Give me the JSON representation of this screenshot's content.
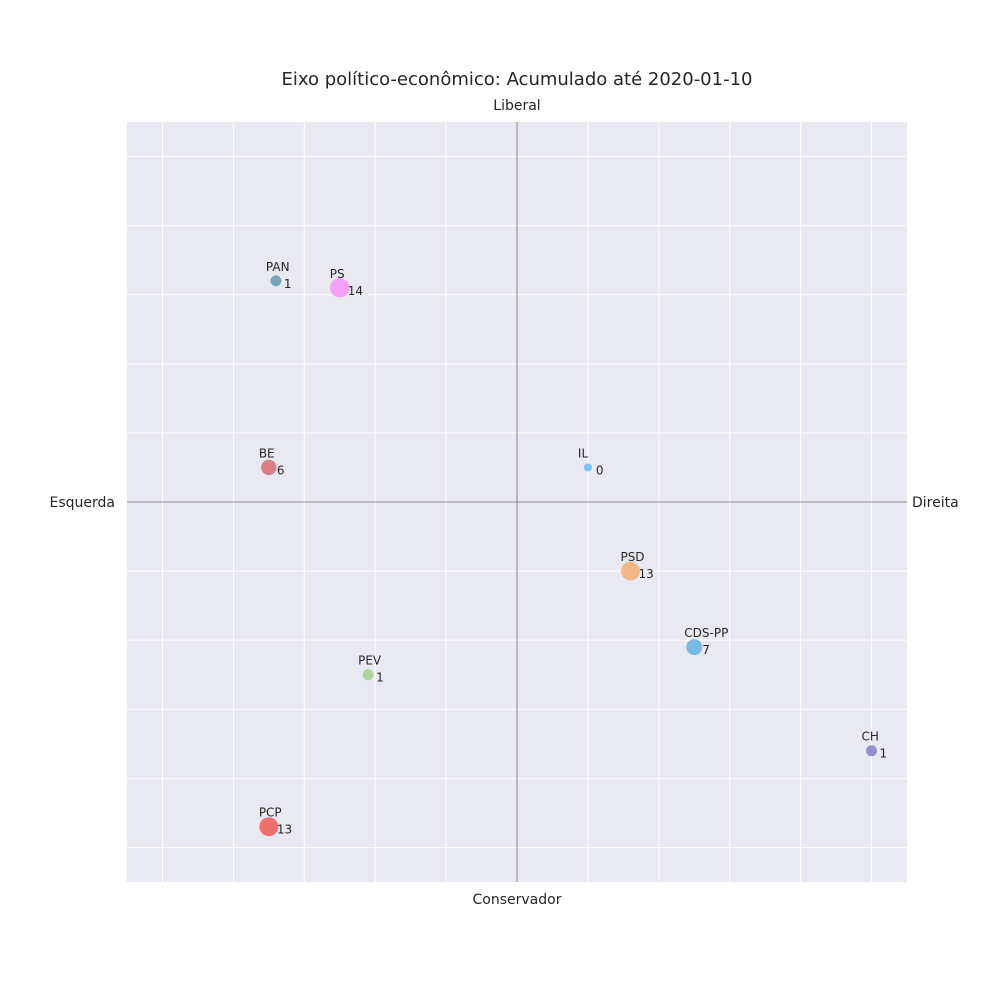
{
  "chart_data": {
    "type": "scatter",
    "title": "Eixo político-econômico: Acumulado até 2020-01-10",
    "axis_labels": {
      "top": "Liberal",
      "bottom": "Conservador",
      "left": "Esquerda",
      "right": "Direita"
    },
    "xlim": [
      -5.5,
      5.5
    ],
    "ylim": [
      -5.5,
      5.5
    ],
    "grid": true,
    "tick_labels": false,
    "points": [
      {
        "name": "PAN",
        "x": -3.4,
        "y": 3.2,
        "seats": 1,
        "color": "#6a9fb5"
      },
      {
        "name": "PS",
        "x": -2.5,
        "y": 3.1,
        "seats": 14,
        "color": "#f598f5"
      },
      {
        "name": "BE",
        "x": -3.5,
        "y": 0.5,
        "seats": 6,
        "color": "#d9717a"
      },
      {
        "name": "IL",
        "x": 1.0,
        "y": 0.5,
        "seats": 0,
        "color": "#6cc1ec"
      },
      {
        "name": "PSD",
        "x": 1.6,
        "y": -1.0,
        "seats": 13,
        "color": "#f4b07b"
      },
      {
        "name": "CDS-PP",
        "x": 2.5,
        "y": -2.1,
        "seats": 7,
        "color": "#6cb4e4"
      },
      {
        "name": "PEV",
        "x": -2.1,
        "y": -2.5,
        "seats": 1,
        "color": "#a6d08f"
      },
      {
        "name": "CH",
        "x": 5.0,
        "y": -3.6,
        "seats": 1,
        "color": "#8c85c4"
      },
      {
        "name": "PCP",
        "x": -3.5,
        "y": -4.7,
        "seats": 13,
        "color": "#f26161"
      }
    ],
    "colors": {
      "plot_background": "#e9e9f1",
      "grid": "#ffffff",
      "axis_line": "#6b6b6b"
    }
  }
}
